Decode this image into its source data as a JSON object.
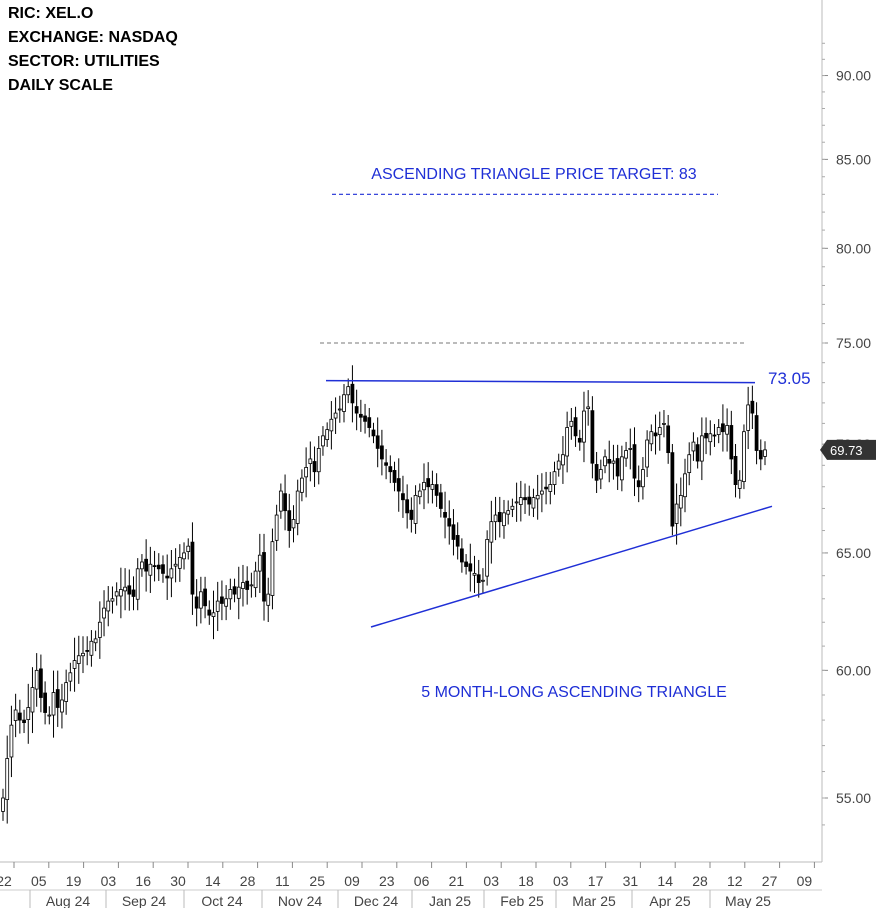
{
  "header": {
    "ric": "RIC:  XEL.O",
    "exchange": "EXCHANGE: NASDAQ",
    "sector": "SECTOR:  UTILITIES",
    "scale": "DAILY SCALE"
  },
  "chart_data": {
    "type": "candlestick",
    "title": "",
    "ylim": [
      52.5,
      95
    ],
    "y_ticks": [
      {
        "value": 55,
        "label": "55.00"
      },
      {
        "value": 60,
        "label": "60.00"
      },
      {
        "value": 65,
        "label": "65.00"
      },
      {
        "value": 70,
        "label": "70.00"
      },
      {
        "value": 75,
        "label": "75.00"
      },
      {
        "value": 80,
        "label": "80.00"
      },
      {
        "value": 85,
        "label": "85.00"
      },
      {
        "value": 90,
        "label": "90.00"
      }
    ],
    "last_price": {
      "value": 69.73,
      "label": "69.73"
    },
    "x_ticks": [
      "22",
      "05",
      "19",
      "03",
      "16",
      "30",
      "14",
      "28",
      "11",
      "25",
      "09",
      "23",
      "06",
      "21",
      "03",
      "18",
      "03",
      "17",
      "31",
      "14",
      "28",
      "12",
      "27",
      "09"
    ],
    "months": [
      "Aug 24",
      "Sep 24",
      "Oct 24",
      "Nov 24",
      "Dec 24",
      "Jan 25",
      "Feb 25",
      "Mar 25",
      "Apr 25",
      "May 25"
    ],
    "annotations": {
      "target_text": "ASCENDING TRIANGLE PRICE TARGET: 83",
      "target_level": 83,
      "resistance_label": "73.05",
      "resistance_level": 73.05,
      "upper_dashed_level": 75,
      "pattern_text": "5 MONTH-LONG ASCENDING TRIANGLE",
      "support_line": {
        "start": [
          "Dec 24",
          61.8
        ],
        "end": [
          "May 25",
          67.1
        ]
      }
    },
    "colors": {
      "line": "#1f2fd6",
      "text": "#1f2fd6",
      "candle": "#000000",
      "axis": "#555555",
      "dashed": "#777777"
    },
    "series": [
      {
        "values": [
          55.0,
          56.5,
          57.8,
          58.4,
          58.0,
          57.9,
          58.5,
          59.3,
          60.0,
          58.9,
          58.3,
          58.2,
          59.1,
          58.5,
          58.8,
          59.5,
          59.9,
          60.4,
          60.6,
          60.7,
          60.8,
          61.2,
          61.3,
          62.0,
          62.6,
          62.9,
          63.0,
          63.3,
          63.4,
          63.5,
          63.2,
          63.1,
          64.3,
          64.6,
          64.2,
          64.5,
          64.4,
          64.3,
          64.1,
          63.9,
          64.3,
          64.5,
          64.8,
          65.0,
          65.3,
          63.2,
          62.6,
          63.3,
          62.7,
          62.3,
          62.4,
          62.9,
          62.8,
          63.0,
          63.4,
          63.2,
          63.5,
          63.7,
          63.4,
          63.6,
          64.2,
          64.9,
          62.9,
          63.2,
          65.5,
          66.7,
          67.8,
          66.9,
          66.0,
          66.5,
          67.8,
          68.4,
          68.9,
          69.3,
          68.7,
          69.8,
          70.4,
          70.7,
          71.2,
          71.5,
          71.7,
          72.4,
          72.8,
          72.0,
          71.5,
          71.3,
          71.1,
          70.8,
          70.4,
          69.8,
          69.3,
          69.0,
          68.7,
          68.2,
          67.8,
          67.4,
          66.8,
          66.5,
          67.6,
          67.8,
          68.2,
          68.0,
          68.1,
          67.6,
          67.0,
          66.6,
          66.2,
          65.6,
          65.3,
          64.6,
          64.4,
          64.2,
          64.1,
          63.7,
          63.8,
          65.6,
          66.4,
          66.7,
          66.4,
          66.8,
          66.9,
          67.1,
          67.3,
          67.5,
          67.4,
          67.2,
          67.5,
          67.6,
          67.8,
          67.9,
          68.1,
          68.7,
          69.2,
          69.5,
          70.8,
          71.1,
          70.4,
          70.1,
          71.6,
          71.8,
          69.1,
          68.3,
          68.8,
          69.4,
          69.1,
          69.2,
          68.5,
          69.4,
          69.7,
          69.8,
          68.4,
          68.0,
          68.8,
          70.2,
          70.6,
          70.4,
          70.8,
          71.0,
          69.6,
          66.2,
          67.2,
          67.6,
          68.6,
          69.5,
          70.1,
          69.2,
          70.4,
          70.3,
          70.5,
          70.4,
          70.8,
          70.6,
          70.9,
          69.3,
          68.1,
          68.3,
          70.6,
          71.9,
          71.5,
          69.7,
          69.3,
          69.73
        ]
      }
    ]
  }
}
